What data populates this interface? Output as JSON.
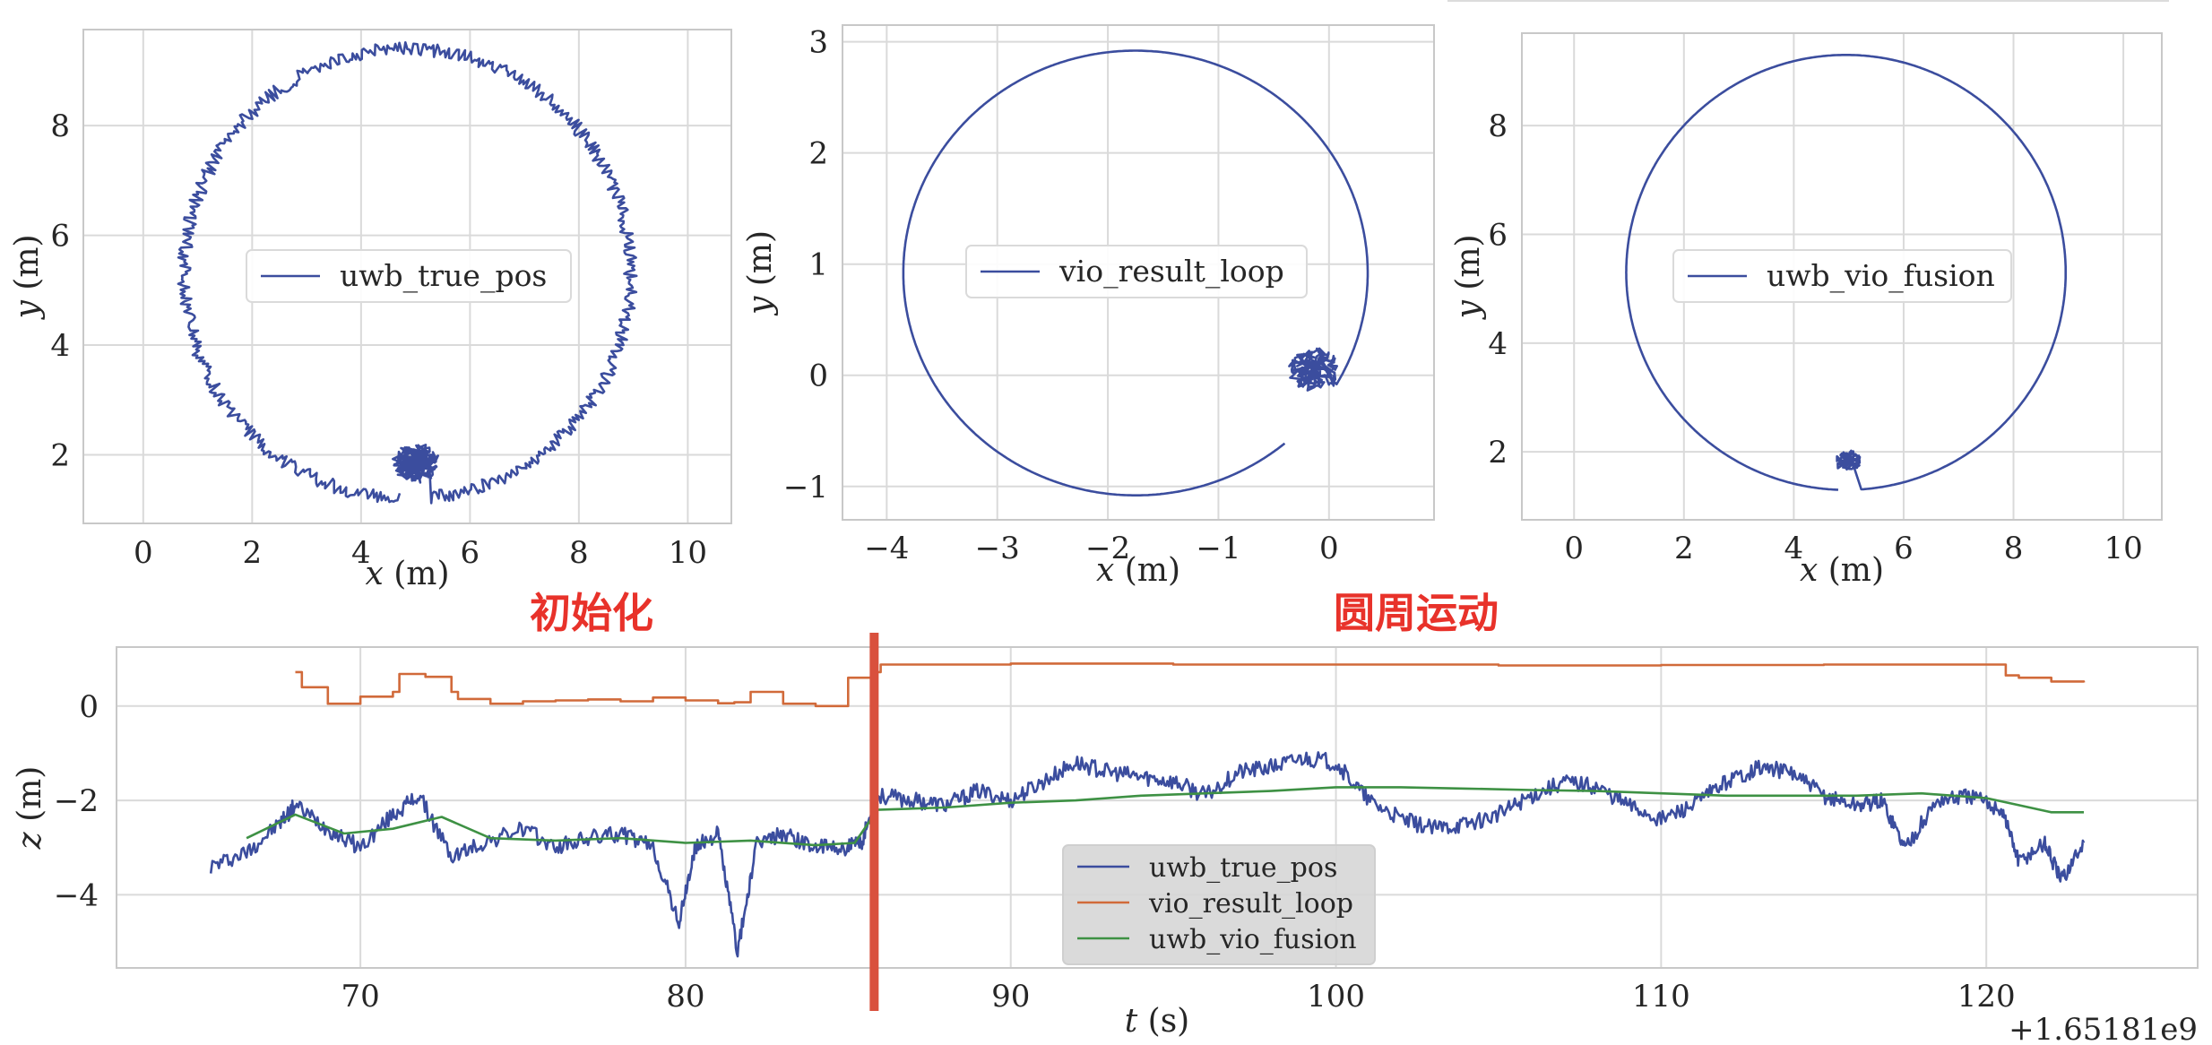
{
  "chart_data": [
    {
      "type": "line",
      "panel": "top-left",
      "title": "",
      "xlabel_var": "x",
      "xlabel_unit": " (m)",
      "ylabel_var": "y",
      "ylabel_unit": " (m)",
      "xlim": [
        -1.1,
        10.8
      ],
      "ylim": [
        0.75,
        9.75
      ],
      "xticks": [
        0,
        2,
        4,
        6,
        8,
        10
      ],
      "yticks": [
        2,
        4,
        6,
        8
      ],
      "xticklabels": [
        "0",
        "2",
        "4",
        "6",
        "8",
        "10"
      ],
      "yticklabels": [
        "2",
        "4",
        "6",
        "8"
      ],
      "grid": true,
      "legend": {
        "position": "center",
        "entries": [
          "uwb_true_pos"
        ]
      },
      "series": [
        {
          "name": "uwb_true_pos",
          "color": "#3b4d9e",
          "shape": {
            "kind": "circle",
            "cx": 4.85,
            "cy": 5.3,
            "r": 4.1,
            "noise": 0.12,
            "start_angle_deg": -84,
            "arc_deg": 352,
            "loop_at": [
              5.0,
              1.85
            ],
            "loop_r": 0.35,
            "loop_count": 6
          }
        }
      ]
    },
    {
      "type": "line",
      "panel": "top-middle",
      "title": "",
      "xlabel_var": "x",
      "xlabel_unit": " (m)",
      "ylabel_var": "y",
      "ylabel_unit": " (m)",
      "xlim": [
        -4.4,
        0.95
      ],
      "ylim": [
        -1.3,
        3.15
      ],
      "xticks": [
        -4,
        -3,
        -2,
        -1,
        0
      ],
      "yticks": [
        -1,
        0,
        1,
        2,
        3
      ],
      "xticklabels": [
        "−4",
        "−3",
        "−2",
        "−1",
        "0"
      ],
      "yticklabels": [
        "−1",
        "0",
        "1",
        "2",
        "3"
      ],
      "grid": true,
      "legend": {
        "position": "center",
        "entries": [
          "vio_result_loop"
        ]
      },
      "series": [
        {
          "name": "vio_result_loop",
          "color": "#3b4d9e",
          "shape": {
            "kind": "circle",
            "cx": -1.75,
            "cy": 0.92,
            "rx": 2.1,
            "ry": 2.0,
            "noise": 0.0,
            "start_angle_deg": -30,
            "arc_deg": 340,
            "loop_at": [
              -0.15,
              0.05
            ],
            "loop_r": 0.2,
            "loop_count": 4
          }
        }
      ]
    },
    {
      "type": "line",
      "panel": "top-right",
      "title": "",
      "xlabel_var": "x",
      "xlabel_unit": " (m)",
      "ylabel_var": "y",
      "ylabel_unit": " (m)",
      "xlim": [
        -0.95,
        10.7
      ],
      "ylim": [
        0.75,
        9.7
      ],
      "xticks": [
        0,
        2,
        4,
        6,
        8,
        10
      ],
      "yticks": [
        2,
        4,
        6,
        8
      ],
      "xticklabels": [
        "0",
        "2",
        "4",
        "6",
        "8",
        "10"
      ],
      "yticklabels": [
        "2",
        "4",
        "6",
        "8"
      ],
      "grid": true,
      "legend": {
        "position": "center",
        "entries": [
          "uwb_vio_fusion"
        ]
      },
      "series": [
        {
          "name": "uwb_vio_fusion",
          "color": "#3b4d9e",
          "shape": {
            "kind": "circle",
            "cx": 4.95,
            "cy": 5.3,
            "r": 4.0,
            "noise": 0.0,
            "start_angle_deg": -86,
            "arc_deg": 354,
            "loop_at": [
              5.0,
              1.85
            ],
            "loop_r": 0.2,
            "loop_count": 3
          }
        }
      ]
    },
    {
      "type": "line",
      "panel": "bottom",
      "title": "",
      "xlabel_var": "t",
      "xlabel_unit": " (s)",
      "ylabel_var": "z",
      "ylabel_unit": " (m)",
      "offset_text": "+1.65181e9",
      "xlim": [
        62.5,
        126.5
      ],
      "ylim": [
        -5.55,
        1.25
      ],
      "xticks": [
        70,
        80,
        90,
        100,
        110,
        120
      ],
      "yticks": [
        -4,
        -2,
        0
      ],
      "xticklabels": [
        "70",
        "80",
        "90",
        "100",
        "110",
        "120"
      ],
      "yticklabels": [
        "−4",
        "−2",
        "0"
      ],
      "grid": true,
      "legend": {
        "position": "lower-center",
        "entries": [
          "uwb_true_pos",
          "vio_result_loop",
          "uwb_vio_fusion"
        ]
      },
      "vline": {
        "x": 85.8,
        "color": "#d9503d"
      },
      "annotations": [
        {
          "text": "初始化",
          "x": 76.0,
          "y": 1.75
        },
        {
          "text": "圆周运动",
          "x": 102.0,
          "y": 1.75
        }
      ],
      "series": [
        {
          "name": "uwb_true_pos",
          "color": "#3b4d9e",
          "x": [
            65.4,
            66.5,
            67.5,
            68.0,
            69.0,
            70.0,
            71.0,
            71.8,
            72.8,
            73.8,
            75.0,
            76.0,
            77.0,
            78.0,
            79.0,
            79.8,
            80.3,
            81.0,
            81.6,
            82.2,
            83.0,
            84.0,
            85.0,
            85.4,
            85.9,
            87.0,
            88.0,
            89.0,
            90.0,
            91.0,
            92.0,
            93.0,
            94.0,
            95.0,
            96.0,
            97.0,
            98.0,
            99.0,
            100.0,
            101.0,
            102.0,
            103.0,
            104.0,
            105.0,
            106.0,
            107.0,
            108.0,
            109.0,
            110.0,
            111.0,
            112.0,
            113.0,
            114.0,
            115.0,
            116.0,
            116.8,
            117.5,
            118.5,
            119.5,
            120.5,
            121.0,
            121.8,
            122.3,
            123.0
          ],
          "values": [
            -3.4,
            -3.1,
            -2.5,
            -2.1,
            -2.6,
            -3.0,
            -2.3,
            -1.9,
            -3.2,
            -2.9,
            -2.6,
            -3.0,
            -2.8,
            -2.7,
            -3.0,
            -4.6,
            -3.0,
            -2.7,
            -5.2,
            -2.9,
            -2.7,
            -3.0,
            -3.0,
            -2.9,
            -1.9,
            -2.0,
            -2.1,
            -1.8,
            -2.0,
            -1.6,
            -1.2,
            -1.4,
            -1.5,
            -1.6,
            -1.9,
            -1.4,
            -1.3,
            -1.1,
            -1.2,
            -2.0,
            -2.4,
            -2.6,
            -2.5,
            -2.3,
            -1.9,
            -1.6,
            -1.7,
            -2.1,
            -2.4,
            -2.1,
            -1.6,
            -1.3,
            -1.4,
            -1.9,
            -2.1,
            -2.0,
            -3.0,
            -2.0,
            -1.9,
            -2.2,
            -3.3,
            -2.9,
            -3.7,
            -2.9
          ],
          "jitter": 0.35
        },
        {
          "name": "vio_result_loop",
          "color": "#d16a3a",
          "x": [
            68.0,
            68.2,
            69.0,
            70.0,
            71.0,
            71.2,
            72.0,
            72.8,
            73.0,
            74.0,
            75.0,
            76.0,
            77.0,
            78.0,
            79.0,
            80.0,
            81.0,
            81.5,
            82.0,
            83.0,
            84.0,
            85.0,
            85.8,
            86.0,
            90.0,
            95.0,
            100.0,
            105.0,
            110.0,
            115.0,
            118.0,
            120.0,
            120.6,
            121.0,
            122.0,
            123.0
          ],
          "values": [
            0.72,
            0.4,
            0.05,
            0.2,
            0.3,
            0.68,
            0.62,
            0.3,
            0.15,
            0.05,
            0.1,
            0.12,
            0.14,
            0.1,
            0.18,
            0.12,
            0.06,
            0.08,
            0.3,
            0.05,
            0.0,
            0.6,
            0.72,
            0.88,
            0.9,
            0.88,
            0.88,
            0.86,
            0.87,
            0.88,
            0.88,
            0.88,
            0.65,
            0.6,
            0.52,
            0.5
          ],
          "step": true
        },
        {
          "name": "uwb_vio_fusion",
          "color": "#3e9144",
          "x": [
            66.5,
            68.0,
            69.5,
            71.0,
            72.5,
            74.0,
            76.0,
            78.0,
            80.0,
            82.0,
            84.0,
            85.2,
            85.9,
            88.0,
            90.0,
            92.0,
            94.0,
            96.0,
            98.0,
            100.0,
            102.0,
            104.0,
            106.0,
            108.0,
            110.0,
            112.0,
            114.0,
            116.0,
            118.0,
            120.0,
            121.0,
            122.0,
            123.0
          ],
          "values": [
            -2.8,
            -2.3,
            -2.7,
            -2.6,
            -2.35,
            -2.8,
            -2.85,
            -2.8,
            -2.9,
            -2.85,
            -2.95,
            -2.9,
            -2.2,
            -2.15,
            -2.05,
            -2.0,
            -1.9,
            -1.85,
            -1.8,
            -1.72,
            -1.72,
            -1.75,
            -1.78,
            -1.8,
            -1.85,
            -1.9,
            -1.9,
            -1.9,
            -1.85,
            -1.95,
            -2.1,
            -2.25,
            -2.25
          ]
        }
      ]
    }
  ]
}
